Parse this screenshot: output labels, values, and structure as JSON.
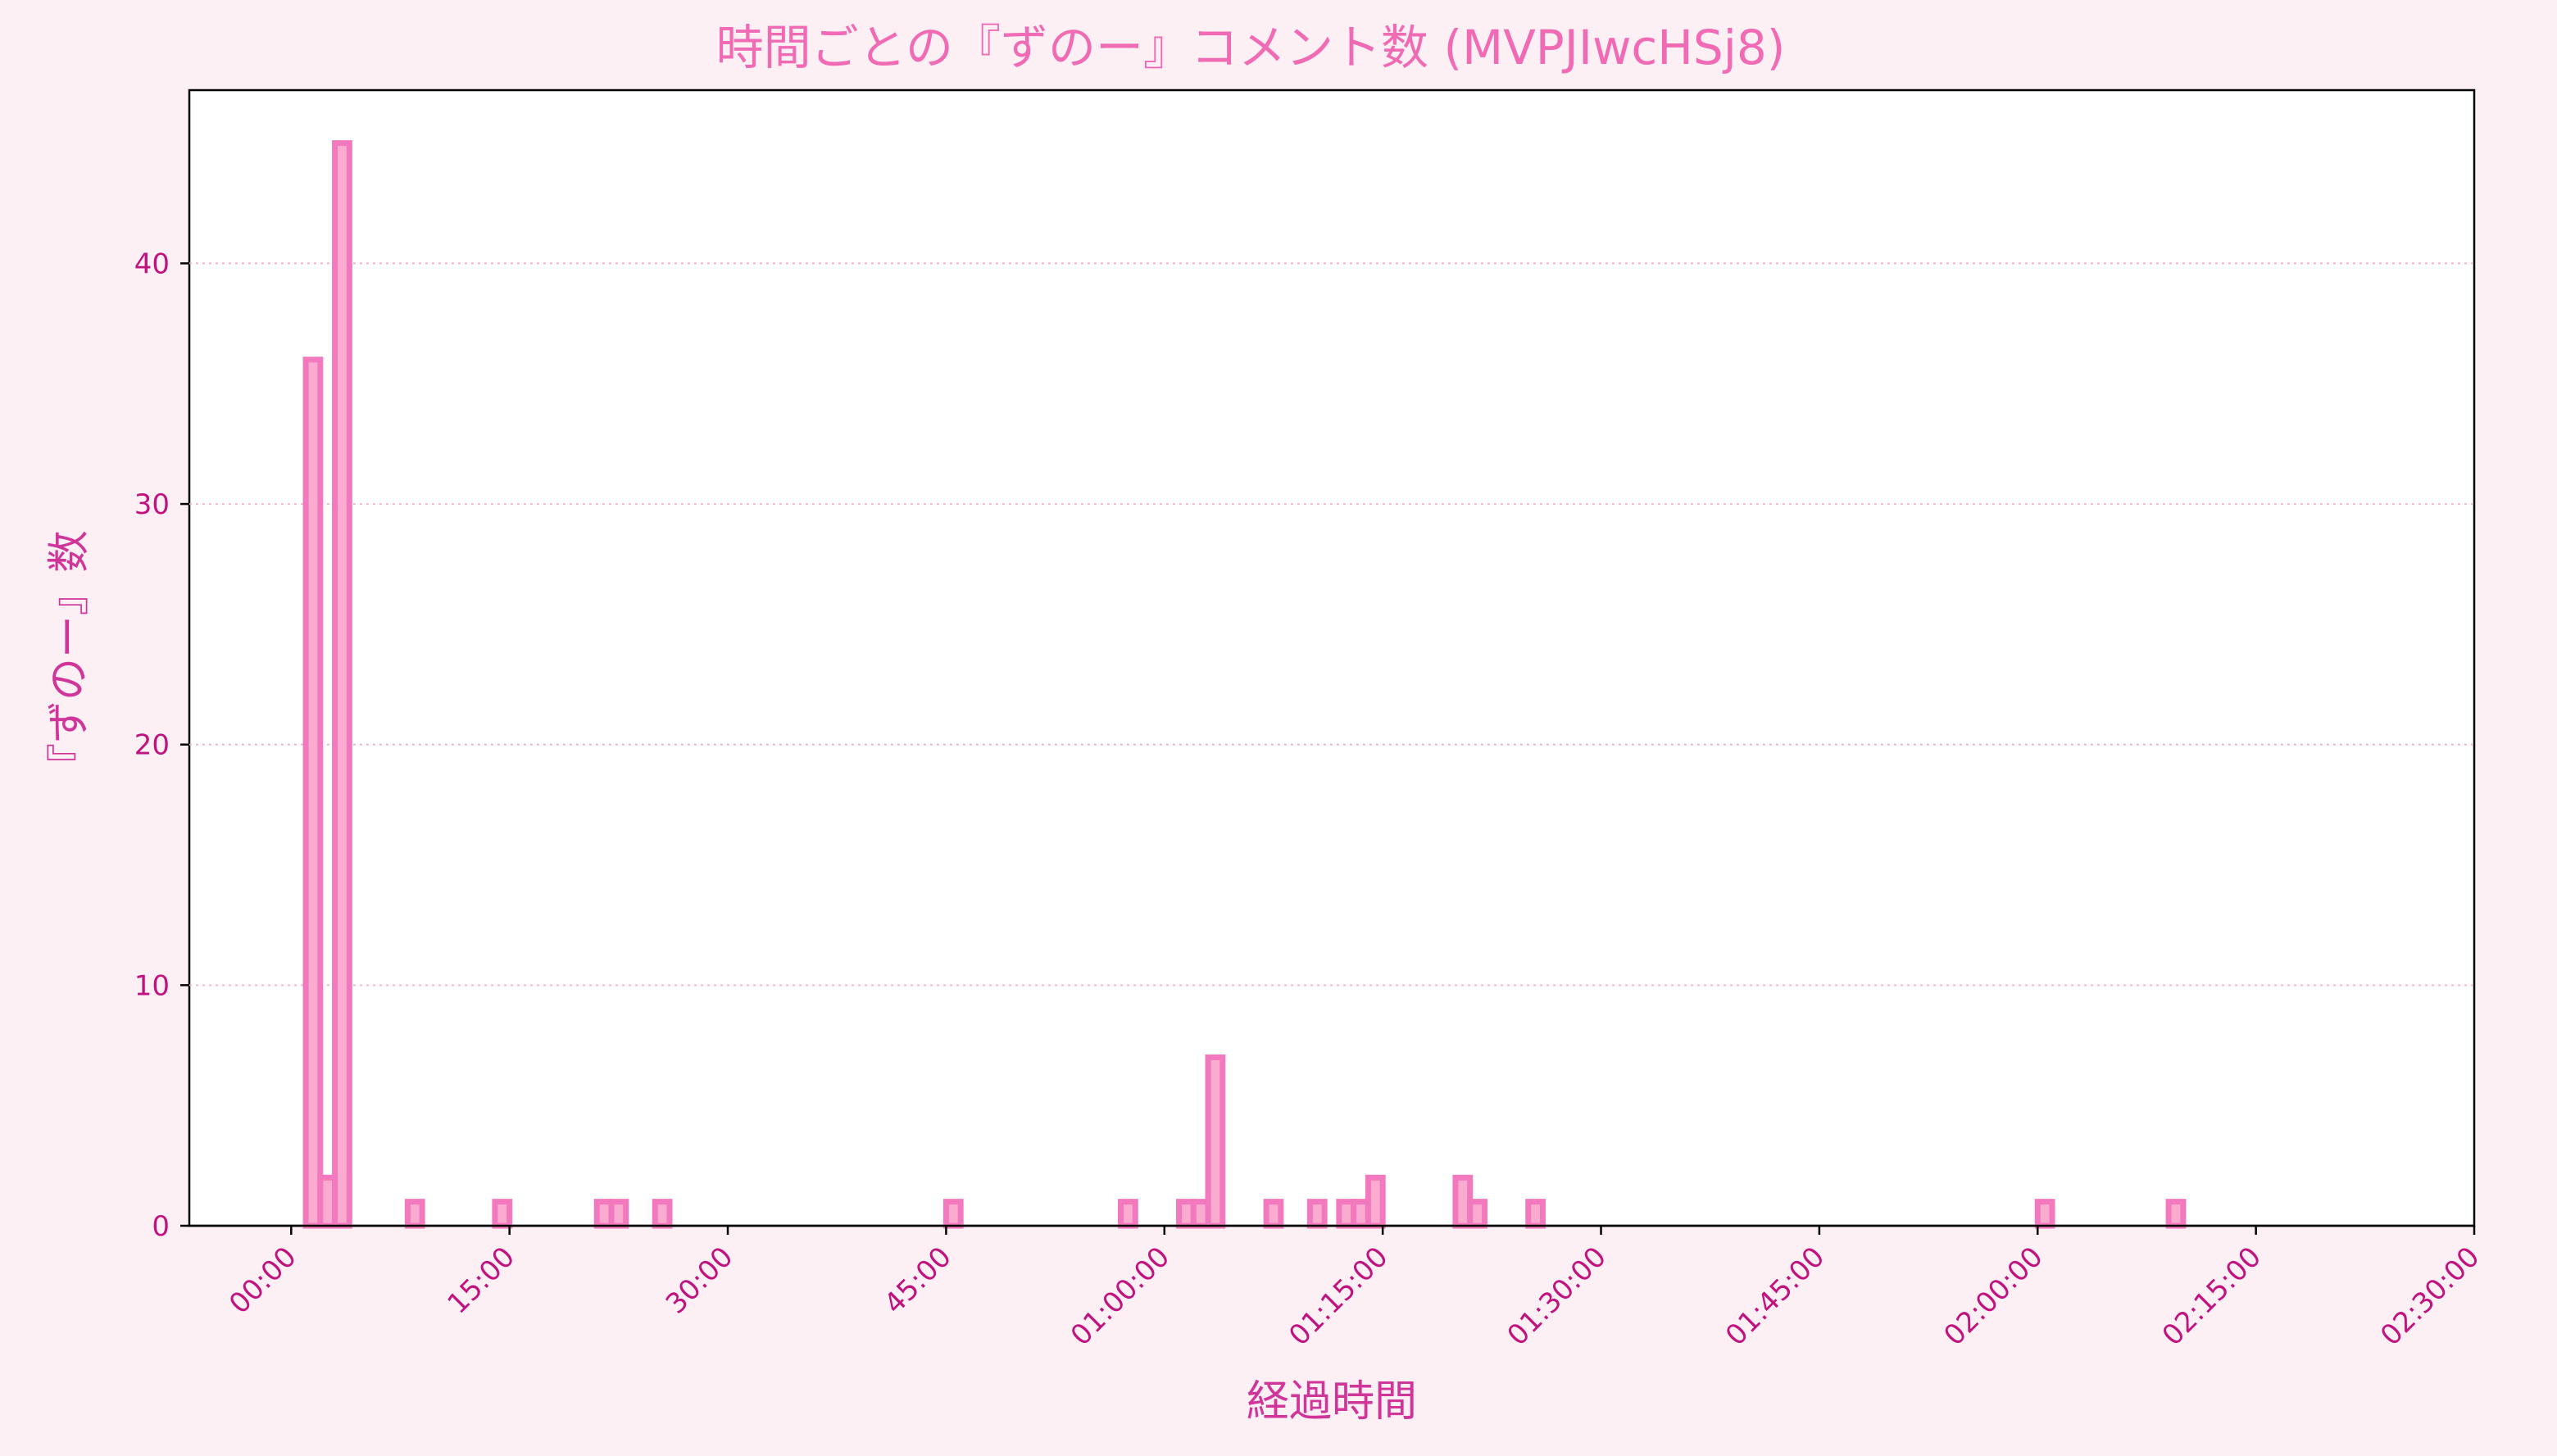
{
  "chart_data": {
    "type": "bar",
    "title": "時間ごとの『ずのー』コメント数 (MVPJIwcHSj8)",
    "xlabel": "経過時間",
    "ylabel": "『ずのー』数",
    "bin_minutes": 1,
    "x_unit": "minutes elapsed",
    "xlim_minutes": [
      -7,
      150
    ],
    "ylim": [
      0,
      47.2
    ],
    "x_ticks": [
      {
        "minutes": 0,
        "label": "00:00"
      },
      {
        "minutes": 15,
        "label": "15:00"
      },
      {
        "minutes": 30,
        "label": "30:00"
      },
      {
        "minutes": 45,
        "label": "45:00"
      },
      {
        "minutes": 60,
        "label": "01:00:00"
      },
      {
        "minutes": 75,
        "label": "01:15:00"
      },
      {
        "minutes": 90,
        "label": "01:30:00"
      },
      {
        "minutes": 105,
        "label": "01:45:00"
      },
      {
        "minutes": 120,
        "label": "02:00:00"
      },
      {
        "minutes": 135,
        "label": "02:15:00"
      },
      {
        "minutes": 150,
        "label": "02:30:00"
      }
    ],
    "y_ticks": [
      0,
      10,
      20,
      30,
      40
    ],
    "grid": "horizontal dotted",
    "series": [
      {
        "start_minutes": [
          0,
          1,
          2,
          3,
          4,
          5,
          6,
          7,
          8,
          9,
          10,
          11,
          12,
          13,
          14,
          15,
          16,
          17,
          18,
          19,
          20,
          21,
          22,
          23,
          24,
          25,
          26,
          27,
          28,
          29,
          30,
          31,
          32,
          33,
          34,
          35,
          36,
          37,
          38,
          39,
          40,
          41,
          42,
          43,
          44,
          45,
          46,
          47,
          48,
          49,
          50,
          51,
          52,
          53,
          54,
          55,
          56,
          57,
          58,
          59,
          60,
          61,
          62,
          63,
          64,
          65,
          66,
          67,
          68,
          69,
          70,
          71,
          72,
          73,
          74,
          75,
          76,
          77,
          78,
          79,
          80,
          81,
          82,
          83,
          84,
          85,
          86,
          87,
          88,
          89,
          90,
          91,
          92,
          93,
          94,
          95,
          96,
          97,
          98,
          99,
          100,
          101,
          102,
          103,
          104,
          105,
          106,
          107,
          108,
          109,
          110,
          111,
          112,
          113,
          114,
          115,
          116,
          117,
          118,
          119,
          120,
          121,
          122,
          123,
          124,
          125,
          126,
          127,
          128,
          129,
          130,
          131,
          132,
          133,
          134,
          135,
          136,
          137,
          138
        ],
        "values": [
          0,
          36,
          2,
          45,
          0,
          0,
          0,
          0,
          1,
          0,
          0,
          0,
          0,
          0,
          1,
          0,
          0,
          0,
          0,
          0,
          0,
          1,
          1,
          0,
          0,
          1,
          0,
          0,
          0,
          0,
          0,
          0,
          0,
          0,
          0,
          0,
          0,
          0,
          0,
          0,
          0,
          0,
          0,
          0,
          0,
          1,
          0,
          0,
          0,
          0,
          0,
          0,
          0,
          0,
          0,
          0,
          0,
          1,
          0,
          0,
          0,
          1,
          1,
          7,
          0,
          0,
          0,
          1,
          0,
          0,
          1,
          0,
          1,
          1,
          2,
          0,
          0,
          0,
          0,
          0,
          2,
          1,
          0,
          0,
          0,
          1,
          0,
          0,
          0,
          0,
          0,
          0,
          0,
          0,
          0,
          0,
          0,
          0,
          0,
          0,
          0,
          0,
          0,
          0,
          0,
          0,
          0,
          0,
          0,
          0,
          0,
          0,
          0,
          0,
          0,
          0,
          0,
          0,
          0,
          0,
          1,
          0,
          0,
          0,
          0,
          0,
          0,
          0,
          0,
          1,
          0,
          0,
          0,
          0,
          0,
          0,
          0,
          0,
          0
        ]
      }
    ]
  }
}
